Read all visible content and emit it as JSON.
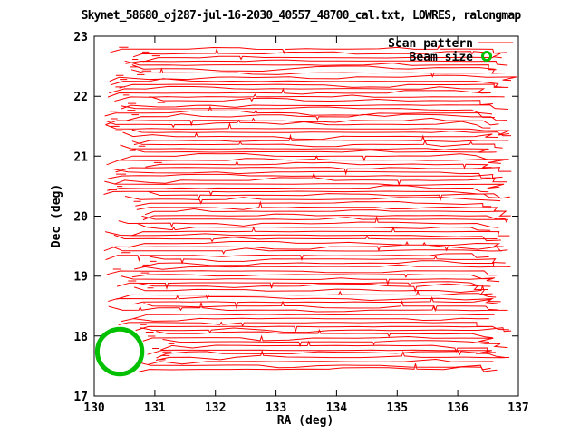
{
  "figure": {
    "background": "#ffffff",
    "frame_color": "#000000",
    "text_color": "#000000"
  },
  "chart_data": {
    "type": "line",
    "title": "Skynet_58680_oj287-jul-16-2030_40557_48700_cal.txt, LOWRES, ralongmap",
    "xlabel": "RA (deg)",
    "ylabel": "Dec (deg)",
    "xlim": [
      130,
      137
    ],
    "ylim": [
      17,
      23
    ],
    "x_ticks": [
      130,
      131,
      132,
      133,
      134,
      135,
      136,
      137
    ],
    "y_ticks": [
      17,
      18,
      19,
      20,
      21,
      22,
      23
    ],
    "grid": false,
    "legend": {
      "position": "top-right",
      "entries": [
        {
          "label": "Scan pattern",
          "color": "#ff0000",
          "sample": "line"
        },
        {
          "label": "Beam size",
          "color": "#00c000",
          "sample": "open-circle"
        }
      ]
    },
    "series": [
      {
        "name": "Scan pattern",
        "type": "raster-scan-path",
        "color": "#ff0000",
        "ra_min": 130.1,
        "ra_max": 136.92,
        "dec_min": 17.44,
        "dec_max": 22.78,
        "n_scan_strokes": 82,
        "stroke_spacing_deg": 0.066,
        "seed": 1337
      },
      {
        "name": "Beam size",
        "type": "circle",
        "color": "#00c000",
        "center_ra": 130.42,
        "center_dec": 17.74,
        "radius_deg": 0.37
      }
    ]
  }
}
